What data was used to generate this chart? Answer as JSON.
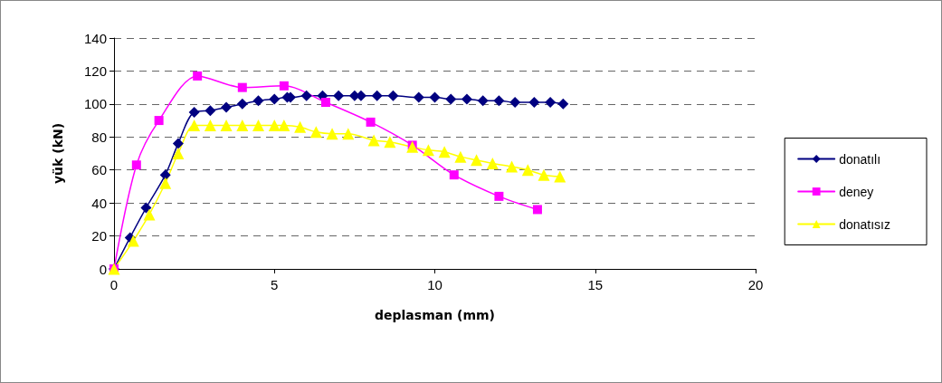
{
  "chart_data": {
    "type": "line",
    "xlabel": "deplasman (mm)",
    "ylabel": "yük (kN)",
    "xlim": [
      0,
      20
    ],
    "xticks": [
      0,
      5,
      10,
      15,
      20
    ],
    "ylim": [
      0,
      140
    ],
    "yticks": [
      0,
      20,
      40,
      60,
      80,
      100,
      120,
      140
    ],
    "grid": "y",
    "legend": "right",
    "line_style": "solid",
    "series": [
      {
        "name": "donatılı",
        "color": "#000080",
        "marker": "diamond",
        "x": [
          0,
          0.5,
          1.0,
          1.6,
          2.0,
          2.5,
          3.0,
          3.5,
          4.0,
          4.5,
          5.0,
          5.4,
          5.5,
          6.0,
          6.5,
          7.0,
          7.5,
          7.7,
          8.2,
          8.7,
          9.5,
          10.0,
          10.5,
          11.0,
          11.5,
          12.0,
          12.5,
          13.1,
          13.6,
          14.0
        ],
        "values": [
          0,
          19,
          37,
          57,
          76,
          95,
          96,
          98,
          100,
          102,
          103,
          104,
          104,
          105,
          105,
          105,
          105,
          105,
          105,
          105,
          104,
          104,
          103,
          103,
          102,
          102,
          101,
          101,
          101,
          100
        ]
      },
      {
        "name": "deney",
        "color": "#ff00ff",
        "marker": "square",
        "x": [
          0,
          0.7,
          1.4,
          2.6,
          4.0,
          5.3,
          6.6,
          8.0,
          9.3,
          10.6,
          12.0,
          13.2
        ],
        "values": [
          0,
          63,
          90,
          117,
          110,
          111,
          101,
          89,
          75,
          57,
          44,
          36
        ]
      },
      {
        "name": "donatısız",
        "color": "#ffff00",
        "marker": "triangle",
        "x": [
          0,
          0.6,
          1.1,
          1.6,
          2.0,
          2.5,
          3.0,
          3.5,
          4.0,
          4.5,
          5.0,
          5.3,
          5.8,
          6.3,
          6.8,
          7.3,
          8.1,
          8.6,
          9.3,
          9.8,
          10.3,
          10.8,
          11.3,
          11.8,
          12.4,
          12.9,
          13.4,
          13.9
        ],
        "values": [
          0,
          17,
          33,
          52,
          70,
          87,
          87,
          87,
          87,
          87,
          87,
          87,
          86,
          83,
          82,
          82,
          78,
          77,
          74,
          72,
          71,
          68,
          66,
          64,
          62,
          60,
          57,
          56
        ]
      }
    ]
  }
}
